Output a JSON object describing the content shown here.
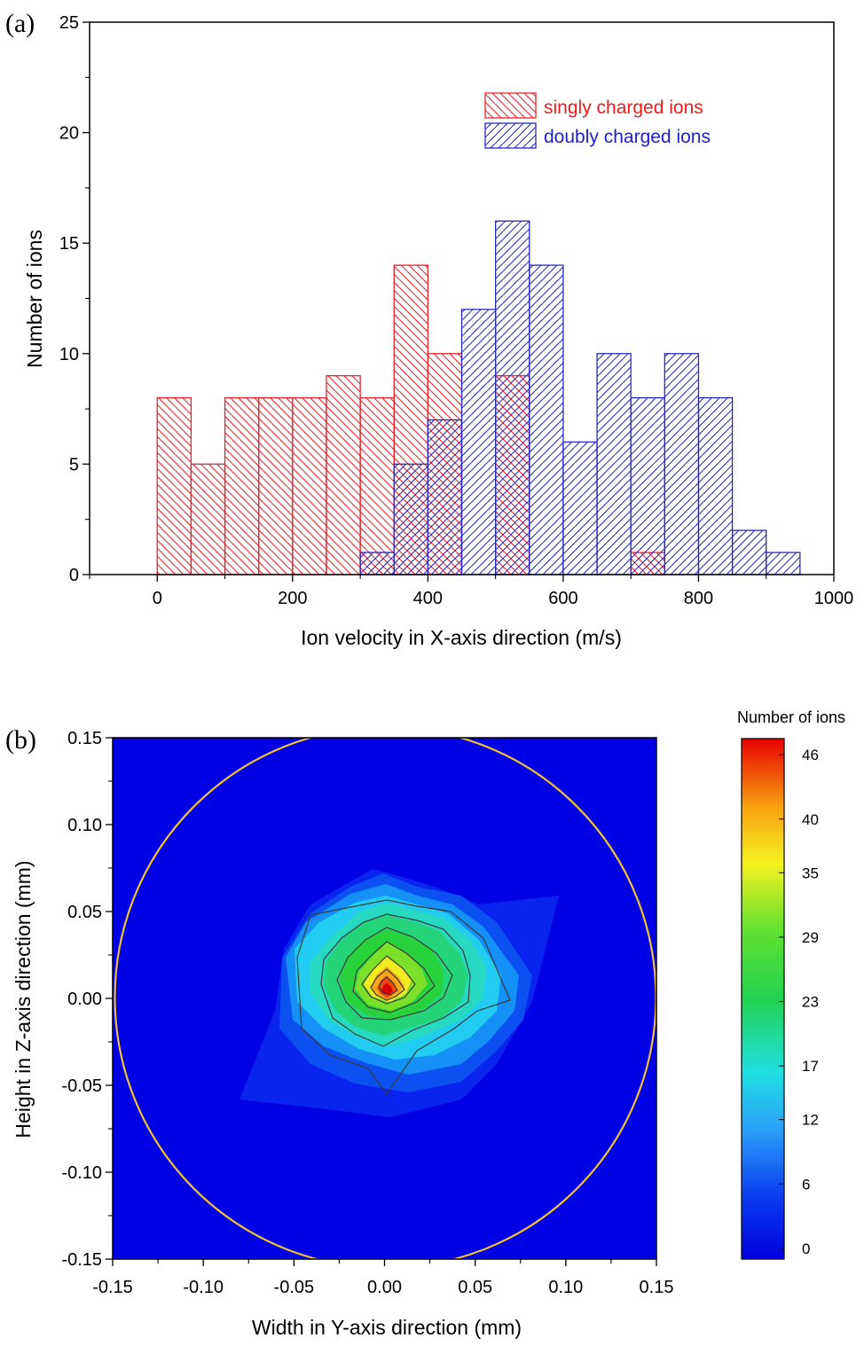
{
  "chart_data": [
    {
      "panel_label": "(a)",
      "type": "bar",
      "subtype": "histogram",
      "xlabel": "Ion velocity in X-axis direction (m/s)",
      "ylabel": "Number of ions",
      "xlim": [
        -100,
        1000
      ],
      "ylim": [
        0,
        25
      ],
      "x_ticks": [
        "0",
        "200",
        "400",
        "600",
        "800",
        "1000"
      ],
      "y_ticks": [
        "0",
        "5",
        "10",
        "15",
        "20",
        "25"
      ],
      "bin_width": 50,
      "series": [
        {
          "name": "singly charged ions",
          "color": "#e8222a",
          "hatch": "backslash",
          "bin_starts": [
            0,
            50,
            100,
            150,
            200,
            250,
            300,
            350,
            400,
            450,
            500,
            550,
            600,
            650,
            700,
            750,
            800,
            850,
            900
          ],
          "values": [
            8,
            5,
            8,
            8,
            8,
            9,
            8,
            14,
            10,
            0,
            9,
            0,
            0,
            0,
            1,
            0,
            0,
            0,
            0
          ]
        },
        {
          "name": "doubly charged ions",
          "color": "#2a2ac0",
          "hatch": "slash",
          "bin_starts": [
            300,
            350,
            400,
            450,
            500,
            550,
            600,
            650,
            700,
            750,
            800,
            850,
            900
          ],
          "values": [
            1,
            5,
            7,
            12,
            16,
            14,
            6,
            10,
            8,
            10,
            8,
            2,
            1
          ]
        }
      ],
      "legend_position": "top-right"
    },
    {
      "panel_label": "(b)",
      "type": "heatmap",
      "subtype": "filled contour",
      "xlabel": "Width in Y-axis direction (mm)",
      "ylabel": "Height in Z-axis direction (mm)",
      "xlim": [
        -0.15,
        0.15
      ],
      "ylim": [
        -0.15,
        0.15
      ],
      "x_ticks": [
        "-0.15",
        "-0.10",
        "-0.05",
        "0.00",
        "0.05",
        "0.10",
        "0.15"
      ],
      "y_ticks": [
        "0.15",
        "0.10",
        "0.05",
        "0.00",
        "-0.05",
        "-0.10",
        "-0.15"
      ],
      "peak": {
        "y": 0.0,
        "z": 0.0,
        "value": 46
      },
      "contour_levels": [
        46,
        40,
        35,
        29,
        23,
        17,
        12,
        6
      ],
      "boundary_circle": {
        "center": [
          0.0,
          0.0
        ],
        "radius": 0.15,
        "color": "#f2c230"
      },
      "colorbar": {
        "title": "Number of ions",
        "ticks": [
          "46",
          "40",
          "35",
          "29",
          "23",
          "17",
          "12",
          "6",
          "0"
        ],
        "min": 0,
        "max": 46
      }
    }
  ]
}
